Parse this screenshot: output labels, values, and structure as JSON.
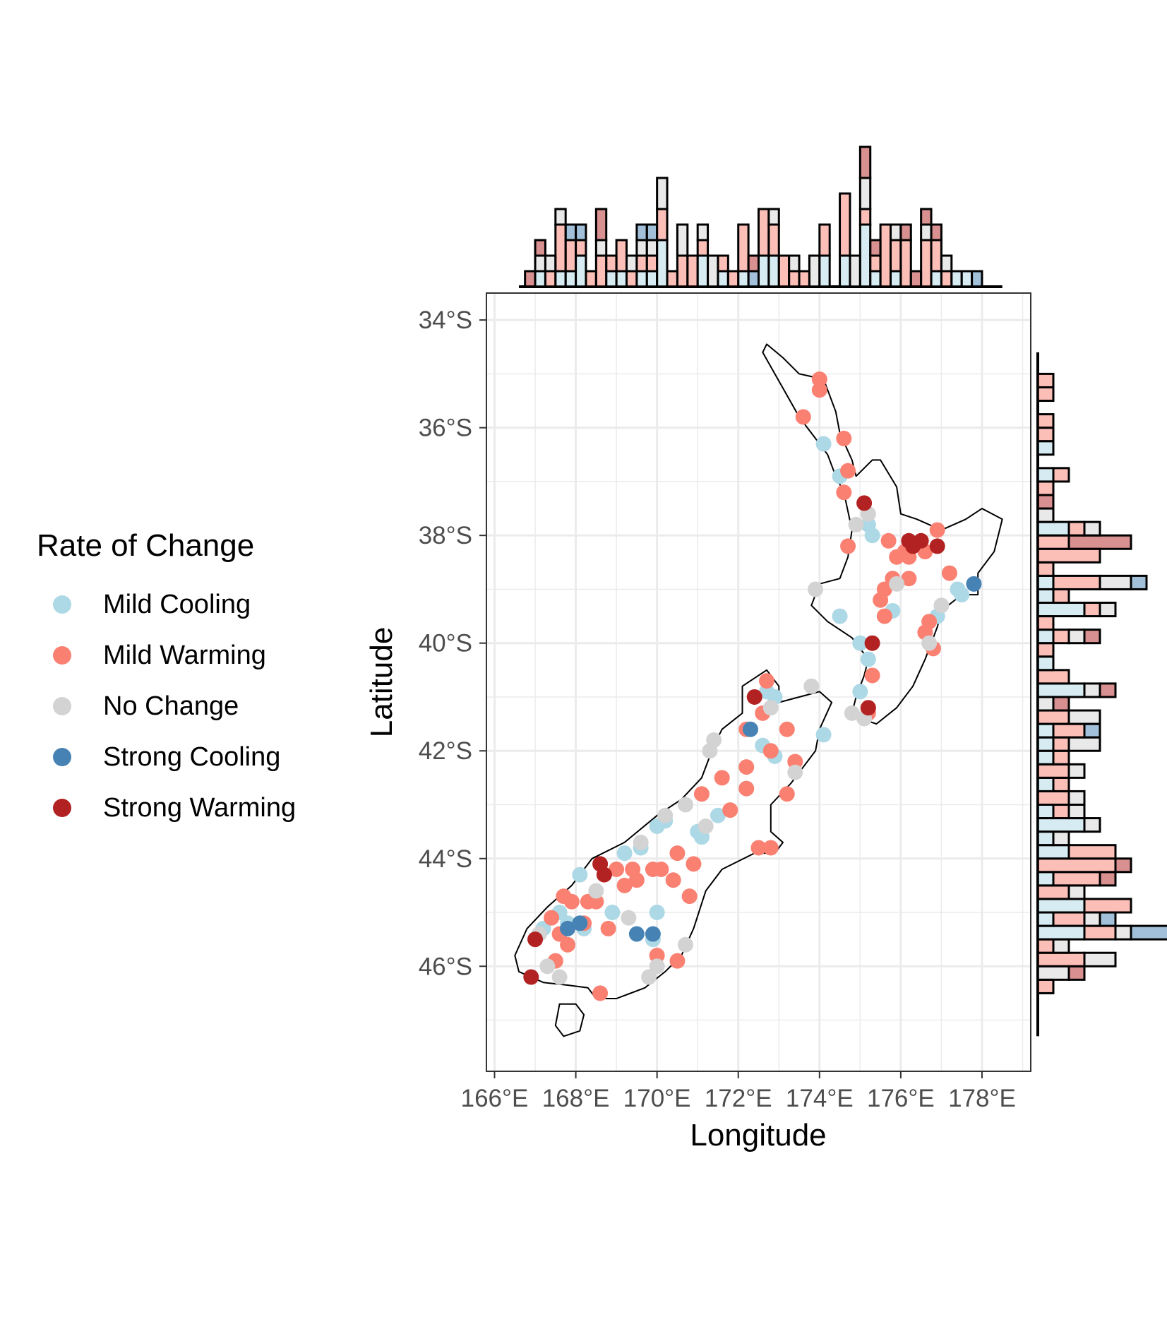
{
  "map": {
    "xlabel": "Longitude",
    "ylabel": "Latitude",
    "x_ticks": [
      "166°E",
      "168°E",
      "170°E",
      "172°E",
      "174°E",
      "176°E",
      "178°E"
    ],
    "x_tick_values": [
      166,
      168,
      170,
      172,
      174,
      176,
      178
    ],
    "y_ticks": [
      "34°S",
      "36°S",
      "38°S",
      "40°S",
      "42°S",
      "44°S",
      "46°S"
    ],
    "y_tick_values": [
      -34,
      -36,
      -38,
      -40,
      -42,
      -44,
      -46
    ],
    "xlim": [
      165.8,
      179.2
    ],
    "ylim": [
      -47.95,
      -33.5
    ],
    "grid": true,
    "region": "New Zealand coastline",
    "legend_placement": "left"
  },
  "legend": {
    "title": "Rate of Change",
    "items": [
      {
        "label": "Mild Cooling",
        "color": "#add8e6"
      },
      {
        "label": "Mild Warming",
        "color": "#fa8072"
      },
      {
        "label": "No Change",
        "color": "#d3d3d3"
      },
      {
        "label": "Strong Cooling",
        "color": "#4682b4"
      },
      {
        "label": "Strong Warming",
        "color": "#b22222"
      }
    ]
  },
  "chart_data": {
    "type": "scatter",
    "x_name": "Longitude",
    "y_name": "Latitude",
    "series": [
      {
        "name": "Mild Cooling",
        "color": "#add8e6",
        "points": [
          [
            174.1,
            -36.3
          ],
          [
            174.5,
            -36.9
          ],
          [
            175.2,
            -37.8
          ],
          [
            175.3,
            -38.0
          ],
          [
            174.5,
            -39.5
          ],
          [
            175.8,
            -39.4
          ],
          [
            176.9,
            -39.5
          ],
          [
            177.4,
            -39.0
          ],
          [
            177.5,
            -39.1
          ],
          [
            175.0,
            -40.0
          ],
          [
            175.2,
            -40.3
          ],
          [
            175.0,
            -40.9
          ],
          [
            172.7,
            -40.9
          ],
          [
            172.9,
            -41.0
          ],
          [
            172.6,
            -41.9
          ],
          [
            172.9,
            -42.1
          ],
          [
            174.1,
            -41.7
          ],
          [
            172.2,
            -42.7
          ],
          [
            171.5,
            -43.2
          ],
          [
            171.0,
            -43.5
          ],
          [
            171.1,
            -43.6
          ],
          [
            170.0,
            -43.4
          ],
          [
            170.2,
            -43.3
          ],
          [
            169.6,
            -43.8
          ],
          [
            169.2,
            -43.9
          ],
          [
            170.0,
            -45.0
          ],
          [
            168.9,
            -45.0
          ],
          [
            169.9,
            -45.5
          ],
          [
            168.1,
            -44.3
          ],
          [
            167.6,
            -45.0
          ],
          [
            167.2,
            -45.3
          ],
          [
            167.8,
            -45.2
          ],
          [
            168.2,
            -45.3
          ]
        ]
      },
      {
        "name": "Mild Warming",
        "color": "#fa8072",
        "points": [
          [
            174.0,
            -35.1
          ],
          [
            174.0,
            -35.3
          ],
          [
            173.6,
            -35.8
          ],
          [
            174.6,
            -36.2
          ],
          [
            174.7,
            -36.8
          ],
          [
            174.6,
            -37.2
          ],
          [
            174.7,
            -38.2
          ],
          [
            175.7,
            -38.1
          ],
          [
            175.9,
            -38.4
          ],
          [
            176.1,
            -38.3
          ],
          [
            176.2,
            -38.4
          ],
          [
            176.6,
            -38.3
          ],
          [
            176.9,
            -37.9
          ],
          [
            175.8,
            -38.8
          ],
          [
            175.6,
            -39.0
          ],
          [
            175.5,
            -39.2
          ],
          [
            175.6,
            -39.5
          ],
          [
            176.2,
            -38.8
          ],
          [
            177.2,
            -38.7
          ],
          [
            176.7,
            -39.6
          ],
          [
            176.6,
            -39.8
          ],
          [
            176.8,
            -40.1
          ],
          [
            175.3,
            -40.6
          ],
          [
            175.2,
            -41.3
          ],
          [
            172.7,
            -40.7
          ],
          [
            172.6,
            -41.3
          ],
          [
            172.2,
            -41.6
          ],
          [
            173.2,
            -41.6
          ],
          [
            172.8,
            -42.0
          ],
          [
            173.4,
            -42.2
          ],
          [
            172.2,
            -42.3
          ],
          [
            171.6,
            -42.5
          ],
          [
            171.1,
            -42.8
          ],
          [
            172.2,
            -42.7
          ],
          [
            173.2,
            -42.8
          ],
          [
            171.8,
            -43.1
          ],
          [
            172.5,
            -43.8
          ],
          [
            172.8,
            -43.8
          ],
          [
            170.9,
            -44.1
          ],
          [
            170.5,
            -43.9
          ],
          [
            169.4,
            -44.2
          ],
          [
            169.0,
            -44.2
          ],
          [
            170.4,
            -44.4
          ],
          [
            170.8,
            -44.7
          ],
          [
            169.9,
            -44.2
          ],
          [
            170.1,
            -44.2
          ],
          [
            169.2,
            -44.5
          ],
          [
            169.5,
            -44.4
          ],
          [
            168.5,
            -44.8
          ],
          [
            168.2,
            -45.2
          ],
          [
            168.8,
            -45.3
          ],
          [
            167.7,
            -44.7
          ],
          [
            167.9,
            -44.8
          ],
          [
            168.3,
            -44.8
          ],
          [
            167.4,
            -45.1
          ],
          [
            167.6,
            -45.4
          ],
          [
            167.8,
            -45.6
          ],
          [
            167.5,
            -45.9
          ],
          [
            170.0,
            -45.8
          ],
          [
            170.5,
            -45.9
          ],
          [
            168.6,
            -46.5
          ]
        ]
      },
      {
        "name": "No Change",
        "color": "#d3d3d3",
        "points": [
          [
            173.9,
            -39.0
          ],
          [
            174.9,
            -37.8
          ],
          [
            175.2,
            -37.6
          ],
          [
            177.0,
            -39.3
          ],
          [
            176.7,
            -40.0
          ],
          [
            175.9,
            -38.9
          ],
          [
            174.8,
            -41.3
          ],
          [
            175.1,
            -41.4
          ],
          [
            173.8,
            -40.8
          ],
          [
            172.8,
            -41.2
          ],
          [
            173.4,
            -42.4
          ],
          [
            171.3,
            -42.0
          ],
          [
            171.4,
            -41.8
          ],
          [
            170.7,
            -43.0
          ],
          [
            170.2,
            -43.2
          ],
          [
            171.2,
            -43.4
          ],
          [
            169.6,
            -43.7
          ],
          [
            169.3,
            -45.1
          ],
          [
            170.7,
            -45.6
          ],
          [
            170.0,
            -46.0
          ],
          [
            169.8,
            -46.2
          ],
          [
            167.6,
            -46.2
          ],
          [
            167.3,
            -46.0
          ],
          [
            168.5,
            -44.6
          ],
          [
            167.1,
            -45.4
          ]
        ]
      },
      {
        "name": "Strong Cooling",
        "color": "#4682b4",
        "points": [
          [
            177.8,
            -38.9
          ],
          [
            172.3,
            -41.6
          ],
          [
            169.9,
            -45.4
          ],
          [
            169.5,
            -45.4
          ],
          [
            167.8,
            -45.3
          ],
          [
            168.1,
            -45.2
          ]
        ]
      },
      {
        "name": "Strong Warming",
        "color": "#b22222",
        "points": [
          [
            175.1,
            -37.4
          ],
          [
            176.2,
            -38.1
          ],
          [
            176.3,
            -38.2
          ],
          [
            176.5,
            -38.1
          ],
          [
            176.9,
            -38.2
          ],
          [
            175.3,
            -40.0
          ],
          [
            175.2,
            -41.2
          ],
          [
            172.4,
            -41.0
          ],
          [
            168.7,
            -44.3
          ],
          [
            168.6,
            -44.1
          ],
          [
            167.0,
            -45.5
          ],
          [
            166.9,
            -46.2
          ]
        ]
      }
    ]
  }
}
